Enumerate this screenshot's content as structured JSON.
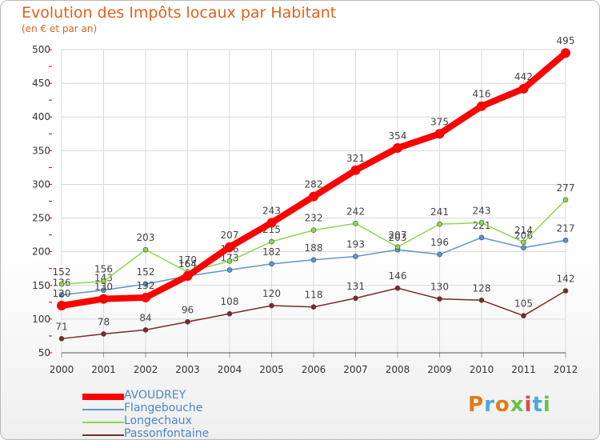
{
  "title": "Evolution des Impôts locaux par Habitant",
  "subtitle": "(en € et par an)",
  "logo": "Proxiti",
  "colors": {
    "title": "#e0621a",
    "grid": "#d8d8d8",
    "axis_text": "#333333",
    "label_text": "#444444"
  },
  "chart_data": {
    "type": "line",
    "x": [
      "2000",
      "2001",
      "2002",
      "2003",
      "2004",
      "2005",
      "2006",
      "2007",
      "2008",
      "2009",
      "2010",
      "2011",
      "2012"
    ],
    "ylim": [
      50,
      500
    ],
    "yticks": [
      50,
      100,
      150,
      200,
      250,
      300,
      350,
      400,
      450,
      500
    ],
    "grid": true,
    "legend_position": "bottom-left",
    "series": [
      {
        "name": "AVOUDREY",
        "color": "#ff0000",
        "values": [
          120,
          130,
          132,
          164,
          207,
          243,
          282,
          321,
          354,
          375,
          416,
          442,
          495
        ],
        "labels": [
          "120",
          "130",
          "132",
          "164",
          "207",
          "243",
          "282",
          "321",
          "354",
          "375",
          "416",
          "442",
          "495"
        ]
      },
      {
        "name": "Flangebouche",
        "color": "#5b96d0",
        "values": [
          136,
          143,
          152,
          164,
          173,
          182,
          188,
          193,
          203,
          196,
          221,
          206,
          217
        ],
        "labels": [
          "136",
          "143",
          "152",
          "164",
          "173",
          "182",
          "188",
          "193",
          "203",
          "196",
          "221",
          "206",
          "217"
        ]
      },
      {
        "name": "Longechaux",
        "color": "#8fd64f",
        "values": [
          152,
          156,
          203,
          170,
          186,
          215,
          232,
          242,
          207,
          241,
          243,
          214,
          277
        ],
        "labels": [
          "152",
          "156",
          "203",
          "170",
          "186",
          "215",
          "232",
          "242",
          "207",
          "241",
          "243",
          "214",
          "277"
        ]
      },
      {
        "name": "Passonfontaine",
        "color": "#7a2a2a",
        "values": [
          71,
          78,
          84,
          96,
          108,
          120,
          118,
          131,
          146,
          130,
          128,
          105,
          142
        ],
        "labels": [
          "71",
          "78",
          "84",
          "96",
          "108",
          "120",
          "118",
          "131",
          "146",
          "130",
          "128",
          "105",
          "142"
        ]
      }
    ]
  },
  "legend": [
    {
      "label": "AVOUDREY",
      "color": "#ff0000"
    },
    {
      "label": "Flangebouche",
      "color": "#5b96d0"
    },
    {
      "label": "Longechaux",
      "color": "#8fd64f"
    },
    {
      "label": "Passonfontaine",
      "color": "#7a2a2a"
    }
  ]
}
